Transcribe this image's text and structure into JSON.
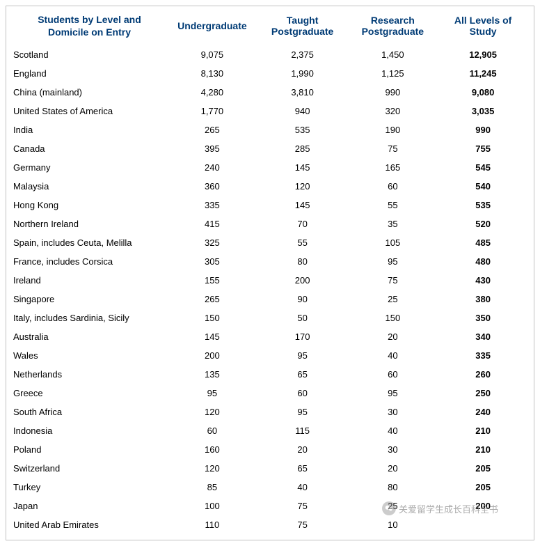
{
  "table": {
    "title_line1": "Students by Level and",
    "title_line2": "Domicile on Entry",
    "columns": [
      "Undergraduate",
      "Taught Postgraduate",
      "Research Postgraduate",
      "All Levels of Study"
    ],
    "header_color": "#003b75",
    "text_color": "#000000",
    "background_color": "#ffffff",
    "border_color": "#c0c0c0",
    "header_fontsize": 14,
    "cell_fontsize": 13,
    "rows": [
      {
        "label": "Scotland",
        "vals": [
          "9,075",
          "2,375",
          "1,450",
          "12,905"
        ]
      },
      {
        "label": "England",
        "vals": [
          "8,130",
          "1,990",
          "1,125",
          "11,245"
        ]
      },
      {
        "label": "China (mainland)",
        "vals": [
          "4,280",
          "3,810",
          "990",
          "9,080"
        ]
      },
      {
        "label": "United States of America",
        "vals": [
          "1,770",
          "940",
          "320",
          "3,035"
        ]
      },
      {
        "label": "India",
        "vals": [
          "265",
          "535",
          "190",
          "990"
        ]
      },
      {
        "label": "Canada",
        "vals": [
          "395",
          "285",
          "75",
          "755"
        ]
      },
      {
        "label": "Germany",
        "vals": [
          "240",
          "145",
          "165",
          "545"
        ]
      },
      {
        "label": "Malaysia",
        "vals": [
          "360",
          "120",
          "60",
          "540"
        ]
      },
      {
        "label": "Hong Kong",
        "vals": [
          "335",
          "145",
          "55",
          "535"
        ]
      },
      {
        "label": "Northern Ireland",
        "vals": [
          "415",
          "70",
          "35",
          "520"
        ]
      },
      {
        "label": "Spain, includes Ceuta, Melilla",
        "vals": [
          "325",
          "55",
          "105",
          "485"
        ]
      },
      {
        "label": "France, includes Corsica",
        "vals": [
          "305",
          "80",
          "95",
          "480"
        ]
      },
      {
        "label": "Ireland",
        "vals": [
          "155",
          "200",
          "75",
          "430"
        ]
      },
      {
        "label": "Singapore",
        "vals": [
          "265",
          "90",
          "25",
          "380"
        ]
      },
      {
        "label": "Italy, includes Sardinia, Sicily",
        "vals": [
          "150",
          "50",
          "150",
          "350"
        ]
      },
      {
        "label": "Australia",
        "vals": [
          "145",
          "170",
          "20",
          "340"
        ]
      },
      {
        "label": "Wales",
        "vals": [
          "200",
          "95",
          "40",
          "335"
        ]
      },
      {
        "label": "Netherlands",
        "vals": [
          "135",
          "65",
          "60",
          "260"
        ]
      },
      {
        "label": "Greece",
        "vals": [
          "95",
          "60",
          "95",
          "250"
        ]
      },
      {
        "label": "South Africa",
        "vals": [
          "120",
          "95",
          "30",
          "240"
        ]
      },
      {
        "label": "Indonesia",
        "vals": [
          "60",
          "115",
          "40",
          "210"
        ]
      },
      {
        "label": "Poland",
        "vals": [
          "160",
          "20",
          "30",
          "210"
        ]
      },
      {
        "label": "Switzerland",
        "vals": [
          "120",
          "65",
          "20",
          "205"
        ]
      },
      {
        "label": "Turkey",
        "vals": [
          "85",
          "40",
          "80",
          "205"
        ]
      },
      {
        "label": "Japan",
        "vals": [
          "100",
          "75",
          "25",
          "200"
        ]
      },
      {
        "label": "United Arab Emirates",
        "vals": [
          "110",
          "75",
          "10",
          ""
        ]
      }
    ]
  },
  "watermark": {
    "text": "关爱留学生成长百科全书",
    "icon_label": "wechat"
  }
}
